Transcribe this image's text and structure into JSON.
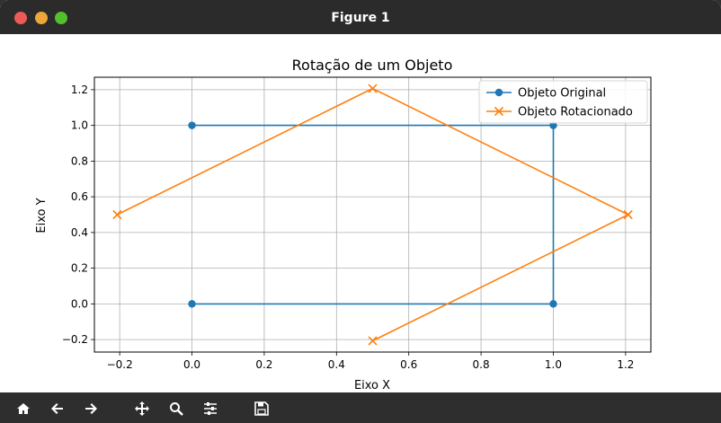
{
  "window": {
    "title": "Figure 1"
  },
  "toolbar": {
    "tools": [
      "home-icon",
      "back-icon",
      "forward-icon",
      "pan-icon",
      "zoom-icon",
      "configure-subplots-icon",
      "save-icon"
    ]
  },
  "chart_data": {
    "type": "line",
    "title": "Rotação de um Objeto",
    "xlabel": "Eixo X",
    "ylabel": "Eixo Y",
    "xlim": [
      -0.27,
      1.27
    ],
    "ylim": [
      -0.27,
      1.27
    ],
    "xticks": [
      -0.2,
      0.0,
      0.2,
      0.4,
      0.6,
      0.8,
      1.0,
      1.2
    ],
    "xtick_labels": [
      "−0.2",
      "0.0",
      "0.2",
      "0.4",
      "0.6",
      "0.8",
      "1.0",
      "1.2"
    ],
    "yticks": [
      -0.2,
      0.0,
      0.2,
      0.4,
      0.6,
      0.8,
      1.0,
      1.2
    ],
    "ytick_labels": [
      "−0.2",
      "0.0",
      "0.2",
      "0.4",
      "0.6",
      "0.8",
      "1.0",
      "1.2"
    ],
    "grid": true,
    "legend_position": "top-right",
    "series": [
      {
        "name": "Objeto Original",
        "color": "#1f77b4",
        "marker": "circle",
        "x": [
          0,
          1,
          1,
          0
        ],
        "y": [
          0,
          0,
          1,
          1
        ]
      },
      {
        "name": "Objeto Rotacionado",
        "color": "#ff7f0e",
        "marker": "x",
        "x": [
          0.5,
          1.207,
          0.5,
          -0.207
        ],
        "y": [
          -0.207,
          0.5,
          1.207,
          0.5
        ]
      }
    ]
  }
}
